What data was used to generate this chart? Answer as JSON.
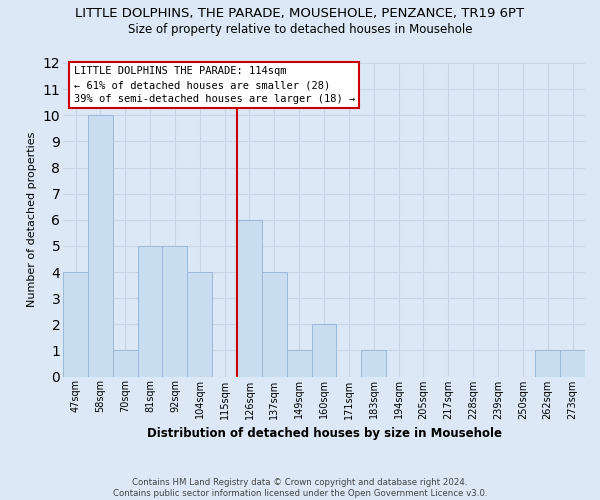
{
  "title": "LITTLE DOLPHINS, THE PARADE, MOUSEHOLE, PENZANCE, TR19 6PT",
  "subtitle": "Size of property relative to detached houses in Mousehole",
  "xlabel": "Distribution of detached houses by size in Mousehole",
  "ylabel": "Number of detached properties",
  "bar_labels": [
    "47sqm",
    "58sqm",
    "70sqm",
    "81sqm",
    "92sqm",
    "104sqm",
    "115sqm",
    "126sqm",
    "137sqm",
    "149sqm",
    "160sqm",
    "171sqm",
    "183sqm",
    "194sqm",
    "205sqm",
    "217sqm",
    "228sqm",
    "239sqm",
    "250sqm",
    "262sqm",
    "273sqm"
  ],
  "bar_values": [
    4,
    10,
    1,
    5,
    5,
    4,
    0,
    6,
    4,
    1,
    2,
    0,
    1,
    0,
    0,
    0,
    0,
    0,
    0,
    1,
    1
  ],
  "bar_color": "#c9ddf0",
  "bar_edge_color": "#9ab8d8",
  "vline_color": "#cc0000",
  "ylim": [
    0,
    12
  ],
  "yticks": [
    0,
    1,
    2,
    3,
    4,
    5,
    6,
    7,
    8,
    9,
    10,
    11,
    12
  ],
  "annotation_title": "LITTLE DOLPHINS THE PARADE: 114sqm",
  "annotation_line1": "← 61% of detached houses are smaller (28)",
  "annotation_line2": "39% of semi-detached houses are larger (18) →",
  "annotation_box_color": "#ffffff",
  "annotation_box_edge": "#cc0000",
  "grid_color": "#c8d4e8",
  "footer_line1": "Contains HM Land Registry data © Crown copyright and database right 2024.",
  "footer_line2": "Contains public sector information licensed under the Open Government Licence v3.0.",
  "bg_color": "#dce8f5",
  "title_fontsize": 9.5,
  "subtitle_fontsize": 8.5,
  "xlabel_fontsize": 8.5,
  "ylabel_fontsize": 8,
  "tick_fontsize": 7,
  "annot_fontsize": 7.5,
  "footer_fontsize": 6.2
}
